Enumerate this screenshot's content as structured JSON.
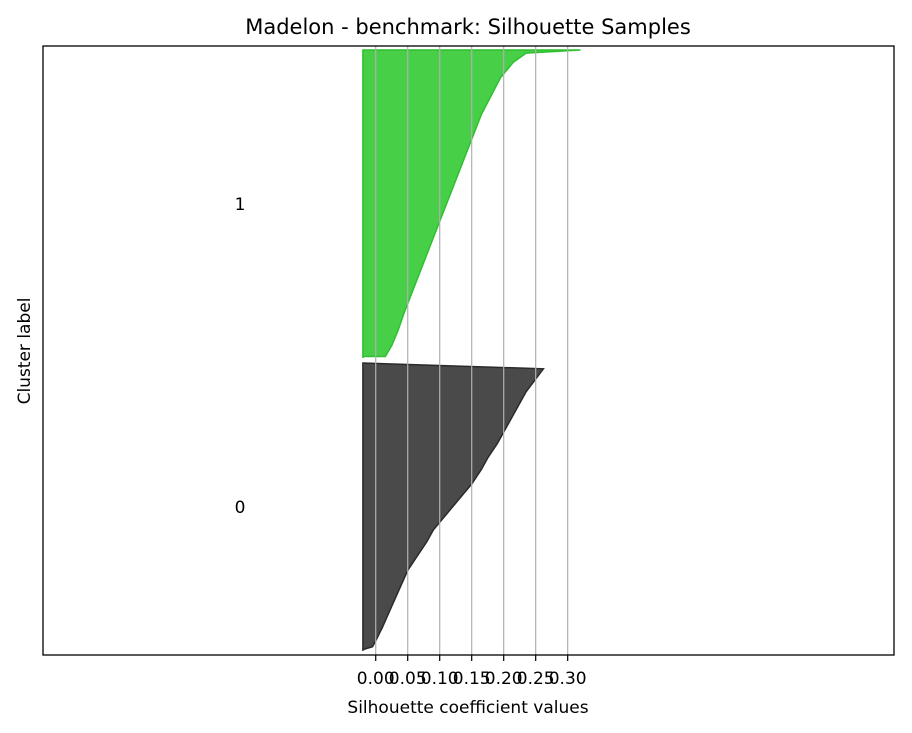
{
  "chart_data": {
    "type": "area",
    "title": "Madelon - benchmark: Silhouette Samples",
    "xlabel": "Silhouette coefficient values",
    "ylabel": "Cluster label",
    "xticks": [
      0.0,
      0.05,
      0.1,
      0.15,
      0.2,
      0.25,
      0.3
    ],
    "xtick_labels": [
      "0.00",
      "0.05",
      "0.10",
      "0.15",
      "0.20",
      "0.25",
      "0.30"
    ],
    "xlim": [
      -0.52,
      0.81
    ],
    "grid": "vertical",
    "series": [
      {
        "name": "0",
        "label": "0",
        "color": "#4a4a4a",
        "edge_color": "#2a2a2a",
        "x": [
          -0.02,
          -0.02,
          -0.005,
          0.0,
          0.01,
          0.02,
          0.03,
          0.04,
          0.05,
          0.065,
          0.08,
          0.09,
          0.105,
          0.12,
          0.135,
          0.15,
          0.165,
          0.175,
          0.19,
          0.21,
          0.235,
          0.262
        ],
        "y": [
          0,
          0.05,
          0.15,
          0.35,
          0.8,
          1.3,
          1.8,
          2.3,
          2.8,
          3.3,
          3.8,
          4.2,
          4.6,
          5.0,
          5.4,
          5.8,
          6.3,
          6.7,
          7.2,
          8.0,
          9.0,
          9.8
        ]
      },
      {
        "name": "1",
        "label": "1",
        "color": "#48cf48",
        "edge_color": "#2fbf2f",
        "x": [
          -0.02,
          -0.02,
          0.015,
          0.025,
          0.035,
          0.045,
          0.06,
          0.075,
          0.09,
          0.105,
          0.12,
          0.135,
          0.15,
          0.165,
          0.18,
          0.195,
          0.215,
          0.235,
          0.32
        ],
        "y": [
          0,
          0.05,
          0.05,
          0.4,
          0.9,
          1.5,
          2.3,
          3.1,
          3.9,
          4.7,
          5.5,
          6.3,
          7.1,
          7.9,
          8.5,
          9.1,
          9.6,
          9.9,
          10.0
        ]
      }
    ]
  }
}
